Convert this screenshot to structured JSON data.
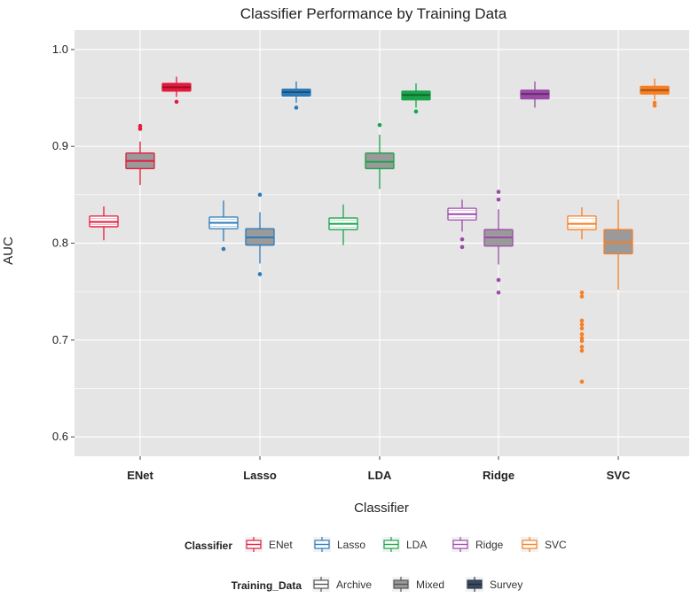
{
  "chart_data": {
    "type": "boxplot",
    "title": "Classifier Performance by Training Data",
    "xlabel": "Classifier",
    "ylabel": "AUC",
    "ylim": [
      0.58,
      1.02
    ],
    "yticks": [
      0.6,
      0.7,
      0.8,
      0.9,
      1.0
    ],
    "ytick_labels": [
      "0.6",
      "0.7",
      "0.8",
      "0.9",
      "1.0"
    ],
    "categories": [
      "ENet",
      "Lasso",
      "LDA",
      "Ridge",
      "SVC"
    ],
    "training_data": [
      "Archive",
      "Mixed",
      "Survey"
    ],
    "colors": {
      "ENet": "#e41a3c",
      "Lasso": "#2b7bba",
      "LDA": "#1aa34a",
      "Ridge": "#9b4aa8",
      "SVC": "#f77f22",
      "mixed_fill": "#9a9a9a",
      "panel": "#e5e5e5"
    },
    "boxes": [
      {
        "classifier": "ENet",
        "training": "Archive",
        "whisker_low": 0.803,
        "q1": 0.817,
        "median": 0.822,
        "q3": 0.828,
        "whisker_high": 0.838,
        "outliers": []
      },
      {
        "classifier": "ENet",
        "training": "Mixed",
        "whisker_low": 0.86,
        "q1": 0.877,
        "median": 0.885,
        "q3": 0.893,
        "whisker_high": 0.905,
        "outliers": [
          0.918,
          0.921
        ]
      },
      {
        "classifier": "ENet",
        "training": "Survey",
        "whisker_low": 0.951,
        "q1": 0.957,
        "median": 0.961,
        "q3": 0.965,
        "whisker_high": 0.972,
        "outliers": [
          0.946
        ]
      },
      {
        "classifier": "Lasso",
        "training": "Archive",
        "whisker_low": 0.802,
        "q1": 0.815,
        "median": 0.821,
        "q3": 0.827,
        "whisker_high": 0.844,
        "outliers": [
          0.794
        ]
      },
      {
        "classifier": "Lasso",
        "training": "Mixed",
        "whisker_low": 0.779,
        "q1": 0.798,
        "median": 0.806,
        "q3": 0.815,
        "whisker_high": 0.832,
        "outliers": [
          0.85,
          0.768
        ]
      },
      {
        "classifier": "Lasso",
        "training": "Survey",
        "whisker_low": 0.945,
        "q1": 0.952,
        "median": 0.956,
        "q3": 0.959,
        "whisker_high": 0.967,
        "outliers": [
          0.94
        ]
      },
      {
        "classifier": "LDA",
        "training": "Archive",
        "whisker_low": 0.798,
        "q1": 0.814,
        "median": 0.82,
        "q3": 0.826,
        "whisker_high": 0.84,
        "outliers": []
      },
      {
        "classifier": "LDA",
        "training": "Mixed",
        "whisker_low": 0.856,
        "q1": 0.877,
        "median": 0.884,
        "q3": 0.893,
        "whisker_high": 0.912,
        "outliers": [
          0.922
        ]
      },
      {
        "classifier": "LDA",
        "training": "Survey",
        "whisker_low": 0.94,
        "q1": 0.948,
        "median": 0.953,
        "q3": 0.957,
        "whisker_high": 0.965,
        "outliers": [
          0.936
        ]
      },
      {
        "classifier": "Ridge",
        "training": "Archive",
        "whisker_low": 0.812,
        "q1": 0.824,
        "median": 0.83,
        "q3": 0.836,
        "whisker_high": 0.845,
        "outliers": [
          0.804,
          0.796
        ]
      },
      {
        "classifier": "Ridge",
        "training": "Mixed",
        "whisker_low": 0.778,
        "q1": 0.797,
        "median": 0.806,
        "q3": 0.814,
        "whisker_high": 0.835,
        "outliers": [
          0.853,
          0.845,
          0.762,
          0.749
        ]
      },
      {
        "classifier": "Ridge",
        "training": "Survey",
        "whisker_low": 0.94,
        "q1": 0.949,
        "median": 0.954,
        "q3": 0.958,
        "whisker_high": 0.967,
        "outliers": []
      },
      {
        "classifier": "SVC",
        "training": "Archive",
        "whisker_low": 0.804,
        "q1": 0.814,
        "median": 0.82,
        "q3": 0.828,
        "whisker_high": 0.837,
        "outliers": [
          0.749,
          0.745,
          0.72,
          0.716,
          0.712,
          0.706,
          0.702,
          0.699,
          0.693,
          0.689,
          0.657
        ]
      },
      {
        "classifier": "SVC",
        "training": "Mixed",
        "whisker_low": 0.752,
        "q1": 0.789,
        "median": 0.801,
        "q3": 0.814,
        "whisker_high": 0.845,
        "outliers": []
      },
      {
        "classifier": "SVC",
        "training": "Survey",
        "whisker_low": 0.948,
        "q1": 0.954,
        "median": 0.958,
        "q3": 0.962,
        "whisker_high": 0.97,
        "outliers": [
          0.945,
          0.942
        ]
      }
    ],
    "legend": {
      "classifier_title": "Classifier",
      "classifier_items": [
        "ENet",
        "Lasso",
        "LDA",
        "Ridge",
        "SVC"
      ],
      "training_title": "Training_Data",
      "training_items": [
        "Archive",
        "Mixed",
        "Survey"
      ],
      "position": "bottom"
    }
  }
}
